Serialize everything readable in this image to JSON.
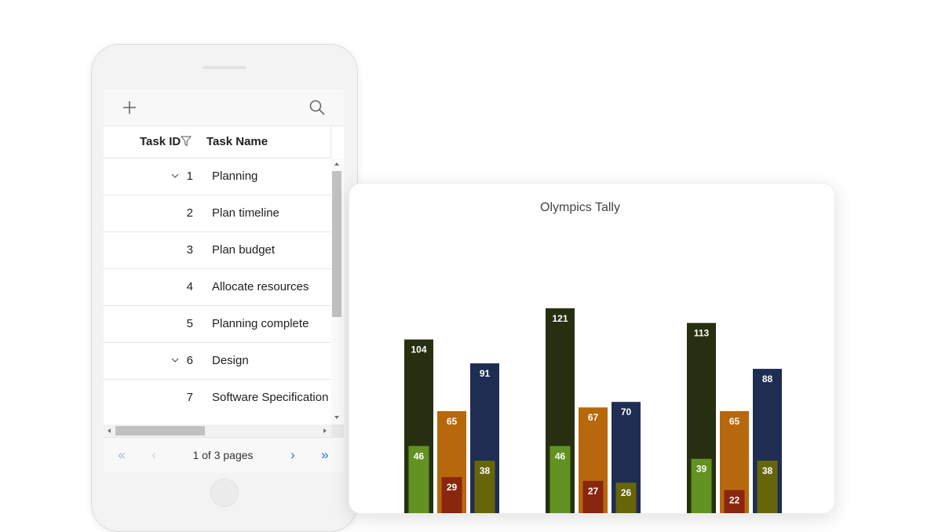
{
  "grid": {
    "toolbar": {
      "add_icon": "plus-icon",
      "search_icon": "search-icon"
    },
    "columns": {
      "task_id": "Task ID",
      "task_name": "Task Name",
      "filter_icon": "filter-icon"
    },
    "rows": [
      {
        "id": "1",
        "name": "Planning",
        "expandable": true
      },
      {
        "id": "2",
        "name": "Plan timeline",
        "expandable": false
      },
      {
        "id": "3",
        "name": "Plan budget",
        "expandable": false
      },
      {
        "id": "4",
        "name": "Allocate resources",
        "expandable": false
      },
      {
        "id": "5",
        "name": "Planning complete",
        "expandable": false
      },
      {
        "id": "6",
        "name": "Design",
        "expandable": true
      },
      {
        "id": "7",
        "name": "Software Specification",
        "expandable": false
      }
    ],
    "pager": {
      "first": "«",
      "prev": "‹",
      "info": "1 of 3 pages",
      "next": "›",
      "last": "»"
    }
  },
  "chart_data": {
    "type": "bar",
    "title": "Olympics Tally",
    "series_colors": {
      "total": "#263010",
      "mid": "#b8680c",
      "blue": "#1f2d52",
      "green": "#629221",
      "red": "#8a250e",
      "olive": "#66650a"
    },
    "groups": [
      {
        "back": [
          104,
          65,
          91
        ],
        "front": [
          46,
          29,
          38
        ]
      },
      {
        "back": [
          121,
          67,
          70
        ],
        "front": [
          46,
          27,
          26
        ]
      },
      {
        "back": [
          113,
          65,
          88
        ],
        "front": [
          39,
          22,
          38
        ]
      }
    ],
    "ylim": [
      0,
      136
    ]
  }
}
